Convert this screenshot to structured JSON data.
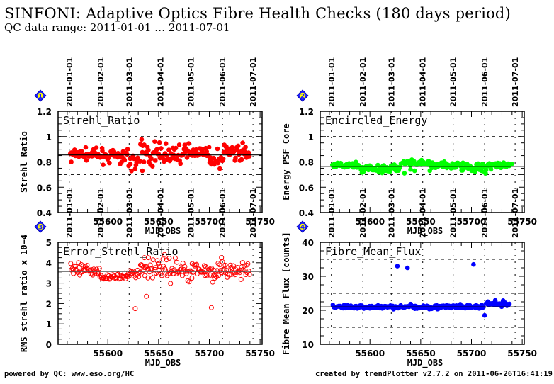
{
  "header": {
    "title": "SINFONI: Adaptive Optics Fibre Health Checks (180 days period)",
    "subtitle": "QC data range: 2011-01-01 … 2011-07-01"
  },
  "footer": {
    "left": "powered by QC: www.eso.org/HC",
    "right": "created by trendPlotter v2.7.2 on 2011-06-26T16:41:19"
  },
  "chart_data": [
    {
      "type": "scatter",
      "id": 1,
      "badge": "1",
      "title": "Strehl_Ratio",
      "xlabel": "MJD_OBS",
      "ylabel": "Strehl Ratio",
      "xlim": [
        55551,
        55752
      ],
      "ylim": [
        0.4,
        1.2
      ],
      "xticks": [
        55600,
        55650,
        55700,
        55750
      ],
      "yticks": [
        0.4,
        0.6,
        0.8,
        1,
        1.2
      ],
      "ytick_labels": [
        "0.4",
        "0.6",
        "0.8",
        "1",
        "1.2"
      ],
      "hlines_dotted": [
        0.7,
        1.0
      ],
      "reference_line": 0.855,
      "marker": "filled-circle",
      "color": "#ff0000",
      "date_ticks": [
        {
          "label": "2011-01-01",
          "mjd": 55562
        },
        {
          "label": "2011-02-01",
          "mjd": 55593
        },
        {
          "label": "2011-03-01",
          "mjd": 55621
        },
        {
          "label": "2011-04-01",
          "mjd": 55652
        },
        {
          "label": "2011-05-01",
          "mjd": 55682
        },
        {
          "label": "2011-06-01",
          "mjd": 55713
        },
        {
          "label": "2011-07-01",
          "mjd": 55743
        }
      ],
      "segments": [
        {
          "x0": 55563,
          "x1": 55590,
          "mean": 0.86,
          "spread": 0.02
        },
        {
          "x0": 55590,
          "x1": 55620,
          "mean": 0.845,
          "spread": 0.025
        },
        {
          "x0": 55620,
          "x1": 55632,
          "mean": 0.81,
          "spread": 0.03
        },
        {
          "x0": 55632,
          "x1": 55652,
          "mean": 0.86,
          "spread": 0.05
        },
        {
          "x0": 55652,
          "x1": 55680,
          "mean": 0.86,
          "spread": 0.04
        },
        {
          "x0": 55680,
          "x1": 55700,
          "mean": 0.88,
          "spread": 0.015
        },
        {
          "x0": 55700,
          "x1": 55714,
          "mean": 0.82,
          "spread": 0.03
        },
        {
          "x0": 55714,
          "x1": 55724,
          "mean": 0.89,
          "spread": 0.03
        },
        {
          "x0": 55724,
          "x1": 55740,
          "mean": 0.86,
          "spread": 0.04
        }
      ],
      "outliers": [
        [
          55564,
          0.8
        ],
        [
          55634,
          0.73
        ],
        [
          55701,
          0.81
        ]
      ]
    },
    {
      "type": "scatter",
      "id": 2,
      "badge": "2",
      "title": "Encircled_Energy",
      "xlabel": "MJD_OBS",
      "ylabel": "Energy PSF Core",
      "xlim": [
        55551,
        55752
      ],
      "ylim": [
        0.4,
        1.2
      ],
      "xticks": [
        55600,
        55650,
        55700,
        55750
      ],
      "yticks": [
        0.4,
        0.6,
        0.8,
        1,
        1.2
      ],
      "ytick_labels": [
        "0.4",
        "0.6",
        "0.8",
        "1",
        "1.2"
      ],
      "hlines_dotted": [
        0.7,
        1.0
      ],
      "reference_line": 0.765,
      "marker": "filled-circle",
      "color": "#00ff00",
      "date_ticks": [
        {
          "label": "2011-01-01",
          "mjd": 55562
        },
        {
          "label": "2011-02-01",
          "mjd": 55593
        },
        {
          "label": "2011-03-01",
          "mjd": 55621
        },
        {
          "label": "2011-04-01",
          "mjd": 55652
        },
        {
          "label": "2011-05-01",
          "mjd": 55682
        },
        {
          "label": "2011-06-01",
          "mjd": 55713
        },
        {
          "label": "2011-07-01",
          "mjd": 55743
        }
      ],
      "segments": [
        {
          "x0": 55563,
          "x1": 55590,
          "mean": 0.77,
          "spread": 0.012
        },
        {
          "x0": 55590,
          "x1": 55630,
          "mean": 0.75,
          "spread": 0.015
        },
        {
          "x0": 55630,
          "x1": 55660,
          "mean": 0.785,
          "spread": 0.015
        },
        {
          "x0": 55660,
          "x1": 55700,
          "mean": 0.77,
          "spread": 0.015
        },
        {
          "x0": 55700,
          "x1": 55715,
          "mean": 0.75,
          "spread": 0.02
        },
        {
          "x0": 55715,
          "x1": 55740,
          "mean": 0.78,
          "spread": 0.015
        }
      ],
      "outliers": [
        [
          55634,
          0.71
        ],
        [
          55640,
          0.74
        ],
        [
          55644,
          0.73
        ],
        [
          55659,
          0.73
        ]
      ]
    },
    {
      "type": "scatter",
      "id": 3,
      "badge": "3",
      "title": "Error_Strehl_Ratio",
      "xlabel": "MJD_OBS",
      "ylabel": "RMS strehl ratio x 10−4",
      "xlim": [
        55551,
        55752
      ],
      "ylim": [
        0,
        5
      ],
      "xticks": [
        55600,
        55650,
        55700,
        55750
      ],
      "yticks": [
        0,
        1,
        2,
        3,
        4,
        5
      ],
      "ytick_labels": [
        "0",
        "1",
        "2",
        "3",
        "4",
        "5"
      ],
      "hlines_dotted": [],
      "reference_line": 3.58,
      "marker": "open-circle",
      "color": "#ff0000",
      "date_ticks": [
        {
          "label": "2011-01-01",
          "mjd": 55562
        },
        {
          "label": "2011-02-01",
          "mjd": 55593
        },
        {
          "label": "2011-03-01",
          "mjd": 55621
        },
        {
          "label": "2011-04-01",
          "mjd": 55652
        },
        {
          "label": "2011-05-01",
          "mjd": 55682
        },
        {
          "label": "2011-06-01",
          "mjd": 55713
        },
        {
          "label": "2011-07-01",
          "mjd": 55743
        }
      ],
      "segments": [
        {
          "x0": 55563,
          "x1": 55592,
          "mean": 3.6,
          "spread": 0.18
        },
        {
          "x0": 55592,
          "x1": 55620,
          "mean": 3.3,
          "spread": 0.08
        },
        {
          "x0": 55620,
          "x1": 55632,
          "mean": 3.5,
          "spread": 0.15
        },
        {
          "x0": 55632,
          "x1": 55660,
          "mean": 3.75,
          "spread": 0.25
        },
        {
          "x0": 55660,
          "x1": 55690,
          "mean": 3.65,
          "spread": 0.25
        },
        {
          "x0": 55690,
          "x1": 55715,
          "mean": 3.6,
          "spread": 0.2
        },
        {
          "x0": 55715,
          "x1": 55740,
          "mean": 3.6,
          "spread": 0.2
        }
      ],
      "outliers": [
        [
          55627,
          1.75
        ],
        [
          55638,
          2.35
        ],
        [
          55702,
          1.8
        ],
        [
          55712,
          4.25
        ],
        [
          55636,
          4.25
        ],
        [
          55640,
          4.25
        ]
      ]
    },
    {
      "type": "scatter",
      "id": 4,
      "badge": "4",
      "title": "Fibre_Mean_Flux",
      "xlabel": "MJD_OBS",
      "ylabel": "Fibre Mean Flux [counts]",
      "xlim": [
        55551,
        55752
      ],
      "ylim": [
        10,
        40
      ],
      "xticks": [
        55600,
        55650,
        55700,
        55750
      ],
      "yticks": [
        10,
        20,
        30,
        40
      ],
      "ytick_labels": [
        "10",
        "20",
        "30",
        "40"
      ],
      "hlines_dotted": [
        15,
        25,
        35
      ],
      "reference_line": 21.0,
      "marker": "filled-circle",
      "color": "#0000ff",
      "date_ticks": [
        {
          "label": "2011-01-01",
          "mjd": 55562
        },
        {
          "label": "2011-02-01",
          "mjd": 55593
        },
        {
          "label": "2011-03-01",
          "mjd": 55621
        },
        {
          "label": "2011-04-01",
          "mjd": 55652
        },
        {
          "label": "2011-05-01",
          "mjd": 55682
        },
        {
          "label": "2011-06-01",
          "mjd": 55713
        },
        {
          "label": "2011-07-01",
          "mjd": 55743
        }
      ],
      "segments": [
        {
          "x0": 55563,
          "x1": 55712,
          "mean": 21.0,
          "spread": 0.3
        },
        {
          "x0": 55714,
          "x1": 55738,
          "mean": 21.8,
          "spread": 0.35
        }
      ],
      "outliers": [
        [
          55627,
          33.0
        ],
        [
          55637,
          32.5
        ],
        [
          55702,
          33.5
        ],
        [
          55713,
          18.5
        ]
      ]
    }
  ]
}
